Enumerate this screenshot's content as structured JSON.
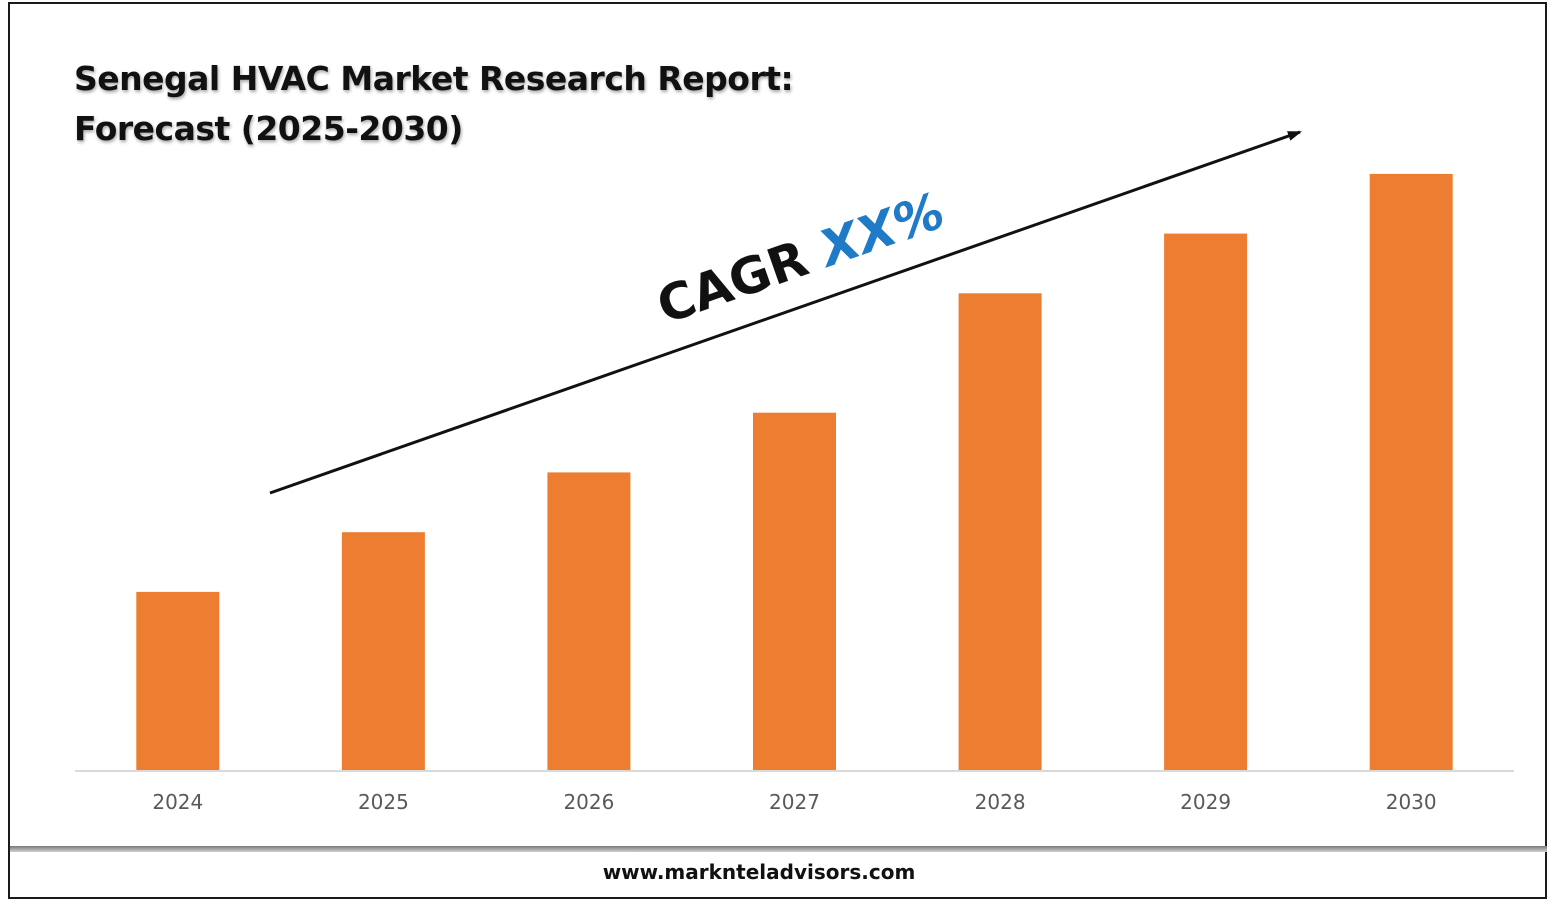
{
  "title_line1": "Senegal HVAC Market Research Report:",
  "title_line2": "Forecast (2025-2030)",
  "cagr_label": "CAGR ",
  "cagr_value": "XX%",
  "footer": "www.marknteladvisors.com",
  "colors": {
    "bar": "#ED7D31",
    "cagr_value": "#1F7AC7",
    "axis": "#d9d9d9",
    "tick_text": "#595959"
  },
  "chart_data": {
    "type": "bar",
    "categories": [
      "2024",
      "2025",
      "2026",
      "2027",
      "2028",
      "2029",
      "2030"
    ],
    "values": [
      3,
      4,
      5,
      6,
      8,
      9,
      10
    ],
    "title": "Senegal HVAC Market Research Report: Forecast (2025-2030)",
    "xlabel": "",
    "ylabel": "",
    "ylim": [
      0,
      10.4
    ],
    "grid": false,
    "legend": "none",
    "annotations": [
      "CAGR XX%"
    ]
  }
}
